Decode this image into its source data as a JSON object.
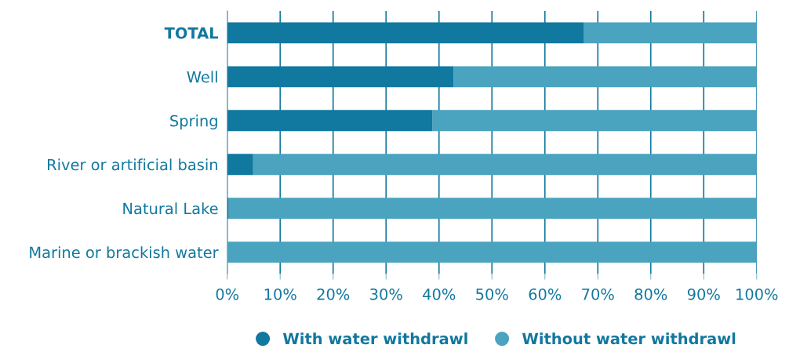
{
  "chart_data": {
    "type": "bar",
    "orientation": "horizontal",
    "stacked": true,
    "categories": [
      "TOTAL",
      "Well",
      "Spring",
      "River or artificial basin",
      "Natural Lake",
      "Marine or brackish water"
    ],
    "series": [
      {
        "name": "With water withdrawl",
        "color": "#11789f",
        "values": [
          67.3,
          42.8,
          38.8,
          4.9,
          0.3,
          0
        ]
      },
      {
        "name": "Without water withdrawl",
        "color": "#4aa3bf",
        "values": [
          32.7,
          57.2,
          61.2,
          95.1,
          99.7,
          100
        ]
      }
    ],
    "xlim": [
      0,
      100
    ],
    "xticks": [
      {
        "value": 0,
        "label": "0%"
      },
      {
        "value": 10,
        "label": "10%"
      },
      {
        "value": 20,
        "label": "20%"
      },
      {
        "value": 30,
        "label": "30%"
      },
      {
        "value": 40,
        "label": "40%"
      },
      {
        "value": 50,
        "label": "50%"
      },
      {
        "value": 60,
        "label": "60%"
      },
      {
        "value": 70,
        "label": "70%"
      },
      {
        "value": 80,
        "label": "80%"
      },
      {
        "value": 90,
        "label": "90%"
      },
      {
        "value": 100,
        "label": "100%"
      }
    ],
    "grid": "x",
    "legend": "bottom"
  }
}
